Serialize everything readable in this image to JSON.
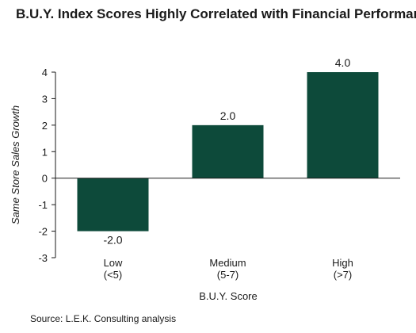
{
  "chart_data": {
    "type": "bar",
    "title": "B.U.Y. Index Scores Highly Correlated with Financial Performance",
    "xlabel": "B.U.Y. Score",
    "ylabel": "Same Store Sales Growth",
    "categories": [
      {
        "line1": "Low",
        "line2": "(<5)"
      },
      {
        "line1": "Medium",
        "line2": "(5-7)"
      },
      {
        "line1": "High",
        "line2": "(>7)"
      }
    ],
    "values": [
      -2.0,
      2.0,
      4.0
    ],
    "data_labels": [
      "-2.0",
      "2.0",
      "4.0"
    ],
    "ylim": [
      -3,
      4
    ],
    "yticks": [
      -3,
      -2,
      -1,
      0,
      1,
      2,
      3,
      4
    ],
    "grid": false,
    "legend": "none",
    "bar_color": "#0d4a3a"
  },
  "source": "Source: L.E.K. Consulting analysis"
}
